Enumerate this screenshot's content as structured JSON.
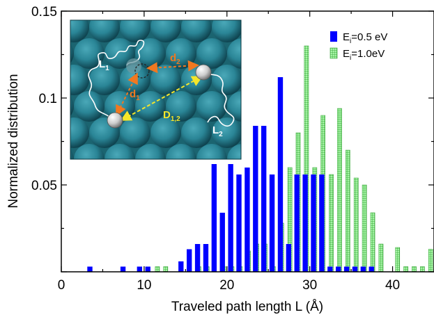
{
  "chart_data": {
    "type": "bar",
    "xlabel": "Traveled path length L (Å)",
    "ylabel": "Normalized distribution",
    "xlim": [
      0,
      45
    ],
    "ylim": [
      0,
      0.15
    ],
    "xticks": [
      "0",
      "10",
      "20",
      "30",
      "40"
    ],
    "yticks": [
      "0.05",
      "0.1",
      "0.15"
    ],
    "grid": false,
    "legend_position": "top-right",
    "series": [
      {
        "name": "E",
        "name_subscript": "i",
        "name_suffix": "=0.5 eV",
        "color": "#0000ff",
        "style": "solid",
        "x": [
          3.5,
          7.5,
          9.5,
          10.5,
          14.5,
          15.5,
          16.5,
          17.5,
          18.5,
          19.5,
          20.5,
          21.5,
          22.5,
          23.5,
          24.5,
          25.5,
          26.5,
          27.5,
          28.5,
          29.5,
          30.5,
          31.5,
          32.5,
          33.5,
          34.5,
          35.5,
          36.5,
          37.5
        ],
        "values": [
          0.003,
          0.003,
          0.003,
          0.003,
          0.006,
          0.013,
          0.016,
          0.016,
          0.062,
          0.034,
          0.062,
          0.056,
          0.06,
          0.084,
          0.084,
          0.056,
          0.112,
          0.016,
          0.056,
          0.056,
          0.056,
          0.056,
          0.003,
          0.003,
          0.003,
          0.003,
          0.003,
          0.003
        ]
      },
      {
        "name": "E",
        "name_subscript": "i",
        "name_suffix": "=1.0eV",
        "color": "#90ee90",
        "style": "hatched",
        "x": [
          11.5,
          12.5,
          16.5,
          17.5,
          19.5,
          20.5,
          21.5,
          22.5,
          23.5,
          24.5,
          25.5,
          26.5,
          27.5,
          28.5,
          29.5,
          30.5,
          31.5,
          32.5,
          33.5,
          34.5,
          35.5,
          36.5,
          37.5,
          38.5,
          40.5,
          41.5,
          42.5,
          43.5,
          44.5
        ],
        "values": [
          0.003,
          0.003,
          0.003,
          0.003,
          0.003,
          0.003,
          0.003,
          0.012,
          0.016,
          0.016,
          0.003,
          0.028,
          0.06,
          0.08,
          0.13,
          0.06,
          0.09,
          0.056,
          0.094,
          0.07,
          0.054,
          0.05,
          0.034,
          0.016,
          0.014,
          0.003,
          0.003,
          0.003,
          0.013
        ]
      }
    ]
  },
  "inset": {
    "labels": {
      "L1_main": "L",
      "L1_sub": "1",
      "L2_main": "L",
      "L2_sub": "2",
      "d1_main": "d",
      "d1_sub": "1",
      "d2_main": "d",
      "d2_sub": "2",
      "D12_main": "D",
      "D12_sub": "1,2"
    },
    "colors": {
      "background": "#1e6b78",
      "atom": "#2a8596",
      "atom_dark": "#0f4450",
      "path": "#ffffff",
      "arrow_d": "#f07820",
      "arrow_D": "#f5e62a",
      "adatom": "#cccccc"
    }
  }
}
